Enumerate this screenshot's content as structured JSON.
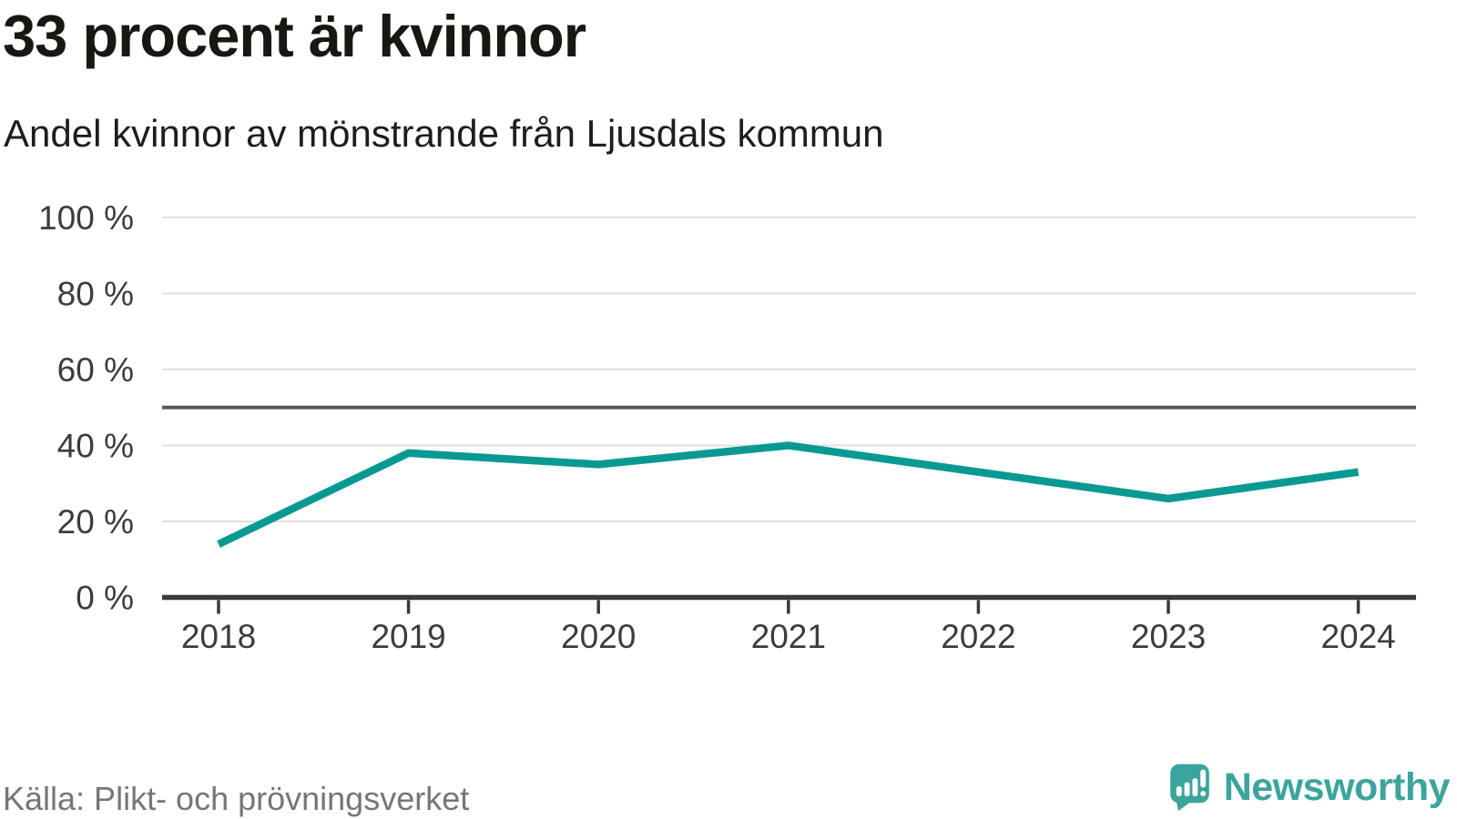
{
  "chart_data": {
    "type": "line",
    "title": "33 procent är kvinnor",
    "subtitle": "Andel kvinnor av mönstrande från Ljusdals kommun",
    "source": "Källa: Plikt- och prövningsverket",
    "x": [
      "2018",
      "2019",
      "2020",
      "2021",
      "2022",
      "2023",
      "2024"
    ],
    "series": [
      {
        "name": "Andel kvinnor av mönstrande",
        "values": [
          14,
          38,
          35,
          40,
          33,
          26,
          33
        ]
      }
    ],
    "unit": "%",
    "ylim": [
      0,
      100
    ],
    "y_ticks": [
      {
        "value": 100,
        "label": "100 %"
      },
      {
        "value": 80,
        "label": "80 %"
      },
      {
        "value": 60,
        "label": "60 %"
      },
      {
        "value": 40,
        "label": "40 %"
      },
      {
        "value": 20,
        "label": "20 %"
      },
      {
        "value": 0,
        "label": "0 %"
      }
    ],
    "reference_line": {
      "value": 50
    },
    "grid": "horizontal",
    "legend": "none"
  },
  "footer": {
    "brand": "Newsworthy"
  },
  "colors": {
    "line_teal": "#089a92",
    "brand_teal": "#3ba59c",
    "grid": "#e0e0e0",
    "reference": "#55555f",
    "axis": "#3a3a3a",
    "tick_label": "#3c3c3c",
    "title": "#181813",
    "subtitle": "#1d1d1a",
    "source": "#767676",
    "background": "#ffffff"
  }
}
